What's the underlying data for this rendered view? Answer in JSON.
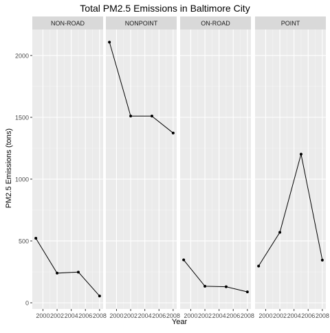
{
  "chart_data": {
    "type": "line",
    "title": "Total PM2.5 Emissions in Baltimore City",
    "xlabel": "Year",
    "ylabel": "PM2.5 Emissions (tons)",
    "x": [
      1999,
      2002,
      2005,
      2008
    ],
    "xticks": [
      2000,
      2002,
      2004,
      2006,
      2008
    ],
    "xlim": [
      1998.5,
      2008.5
    ],
    "yticks": [
      0,
      500,
      1000,
      1500,
      2000
    ],
    "ylim": [
      -50,
      2210
    ],
    "grid": true,
    "series": [
      {
        "name": "NON-ROAD",
        "values": [
          522,
          240,
          248,
          55
        ]
      },
      {
        "name": "NONPOINT",
        "values": [
          2108,
          1510,
          1510,
          1373
        ]
      },
      {
        "name": "ON-ROAD",
        "values": [
          347,
          134,
          130,
          88
        ]
      },
      {
        "name": "POINT",
        "values": [
          297,
          570,
          1202,
          345
        ]
      }
    ]
  }
}
